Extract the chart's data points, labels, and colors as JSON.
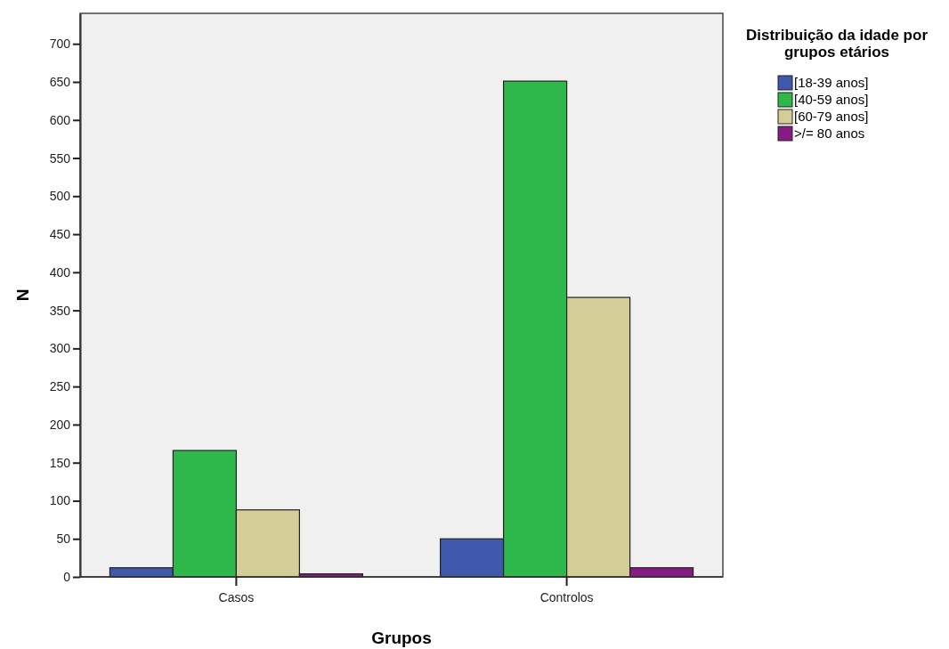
{
  "chart_data": {
    "type": "bar",
    "xlabel": "Grupos",
    "ylabel": "N",
    "legend_title": "Distribuição da idade por grupos etários",
    "legend": "top right",
    "categories": [
      "Casos",
      "Controlos"
    ],
    "series": [
      {
        "name": "[18-39 anos]",
        "color": "#3e58ac",
        "values": [
          12,
          50
        ]
      },
      {
        "name": "[40-59 anos]",
        "color": "#2eb84b",
        "values": [
          166,
          651
        ]
      },
      {
        "name": "[60-79 anos]",
        "color": "#d3ce97",
        "values": [
          88,
          367
        ]
      },
      {
        "name": ">/= 80 anos",
        "color": "#871a85",
        "values": [
          4,
          12
        ]
      }
    ],
    "ylim": [
      0,
      740
    ],
    "yticks": [
      0,
      50,
      100,
      150,
      200,
      250,
      300,
      350,
      400,
      450,
      500,
      550,
      600,
      650,
      700
    ]
  }
}
